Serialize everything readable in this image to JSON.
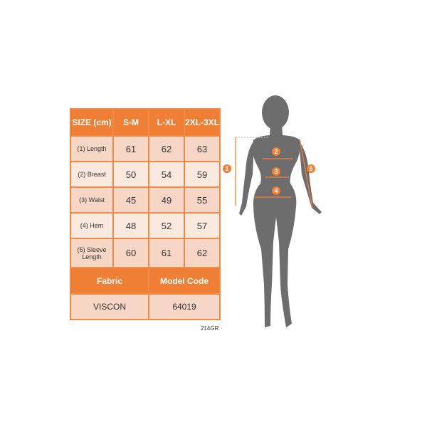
{
  "table": {
    "header": [
      "SIZE (cm)",
      "S-M",
      "L-XL",
      "2XL-3XL"
    ],
    "rows": [
      {
        "label": "(1) Length",
        "values": [
          "61",
          "62",
          "63"
        ]
      },
      {
        "label": "(2) Breast",
        "values": [
          "50",
          "54",
          "59"
        ]
      },
      {
        "label": "(3) Waist",
        "values": [
          "45",
          "49",
          "55"
        ]
      },
      {
        "label": "(4) Hem",
        "values": [
          "48",
          "52",
          "57"
        ]
      },
      {
        "label": "(5) Sleeve Length",
        "values": [
          "60",
          "61",
          "62"
        ]
      }
    ],
    "footer_header": [
      "Fabric",
      "Model Code"
    ],
    "footer_values": [
      "VISCON",
      "64019"
    ]
  },
  "product_code": "214GR",
  "figure": {
    "markers": [
      "1",
      "2",
      "3",
      "4",
      "5"
    ],
    "silhouette_color": "#6d6d6d",
    "accent_color": "#ef7f35"
  }
}
